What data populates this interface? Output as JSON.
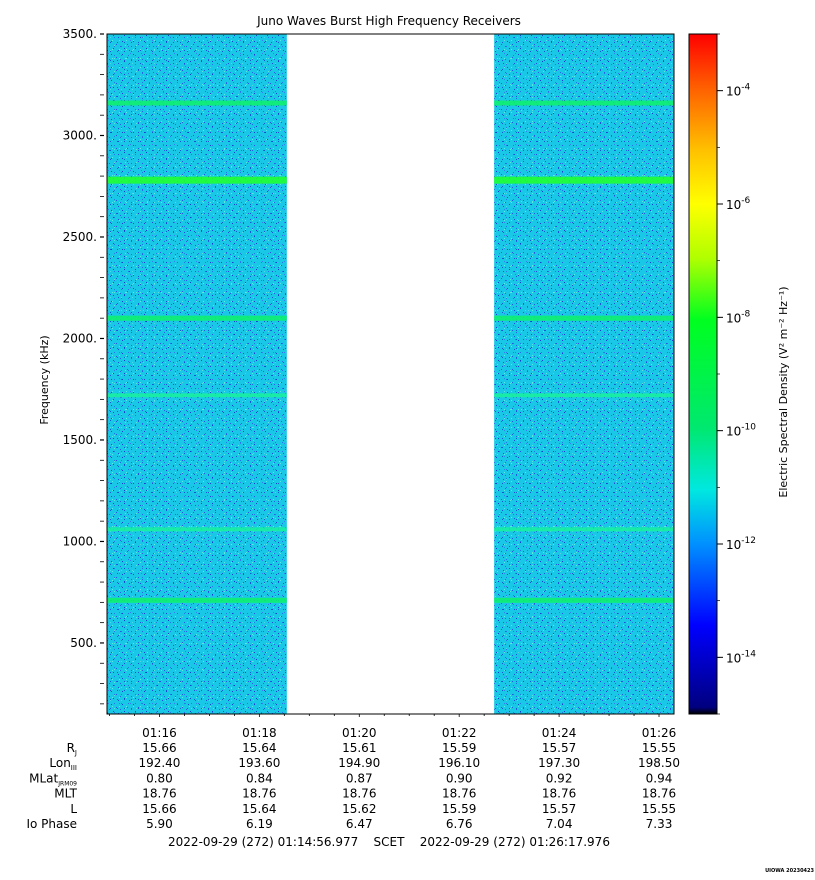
{
  "chart_data": {
    "type": "heatmap",
    "title": "Juno Waves Burst High Frequency Receivers",
    "ylabel": "Frequency (kHz)",
    "ylim": [
      150,
      3500
    ],
    "y_ticks": [
      {
        "value": 500,
        "label": "500."
      },
      {
        "value": 1000,
        "label": "1000."
      },
      {
        "value": 1500,
        "label": "1500."
      },
      {
        "value": 2000,
        "label": "2000."
      },
      {
        "value": 2500,
        "label": "2500."
      },
      {
        "value": 3000,
        "label": "3000."
      },
      {
        "value": 3500,
        "label": "3500."
      }
    ],
    "x_range_minutes": [
      14.95,
      26.3
    ],
    "x_ticks": [
      {
        "value": 16,
        "label": "01:16"
      },
      {
        "value": 18,
        "label": "01:18"
      },
      {
        "value": 20,
        "label": "01:20"
      },
      {
        "value": 22,
        "label": "01:22"
      },
      {
        "value": 24,
        "label": "01:24"
      },
      {
        "value": 26,
        "label": "01:26"
      }
    ],
    "data_gap_minutes": [
      18.55,
      22.7
    ],
    "background_level": 1e-12,
    "emission_bands": [
      {
        "frequency_khz": 3160,
        "level": 1e-10
      },
      {
        "frequency_khz": 2780,
        "level": 1e-09
      },
      {
        "frequency_khz": 2100,
        "level": 1e-10
      },
      {
        "frequency_khz": 1720,
        "level": 3e-11
      },
      {
        "frequency_khz": 1060,
        "level": 3e-11
      },
      {
        "frequency_khz": 710,
        "level": 6e-11
      }
    ],
    "colorbar": {
      "label": "Electric Spectral Density (V² m⁻² Hz⁻¹)",
      "scale": "log",
      "range_exp": [
        -15,
        -3
      ],
      "ticks": [
        {
          "exp": -14,
          "base": "10",
          "sup": "-14"
        },
        {
          "exp": -12,
          "base": "10",
          "sup": "-12"
        },
        {
          "exp": -10,
          "base": "10",
          "sup": "-10"
        },
        {
          "exp": -8,
          "base": "10",
          "sup": "-8"
        },
        {
          "exp": -6,
          "base": "10",
          "sup": "-6"
        },
        {
          "exp": -4,
          "base": "10",
          "sup": "-4"
        }
      ],
      "colors": [
        "#000080",
        "#0000ff",
        "#00a0ff",
        "#00e0e0",
        "#00ff40",
        "#a0ff00",
        "#ffff00",
        "#ff8000",
        "#ff0000"
      ]
    },
    "ephemeris": {
      "rows": [
        {
          "label": "R",
          "sub": "J",
          "values": [
            "15.66",
            "15.64",
            "15.61",
            "15.59",
            "15.57",
            "15.55"
          ]
        },
        {
          "label": "Lon",
          "sub": "III",
          "values": [
            "192.40",
            "193.60",
            "194.90",
            "196.10",
            "197.30",
            "198.50"
          ]
        },
        {
          "label": "MLat",
          "sub": "JRM09",
          "values": [
            "0.80",
            "0.84",
            "0.87",
            "0.90",
            "0.92",
            "0.94"
          ]
        },
        {
          "label": "MLT",
          "sub": "",
          "values": [
            "18.76",
            "18.76",
            "18.76",
            "18.76",
            "18.76",
            "18.76"
          ]
        },
        {
          "label": "L",
          "sub": "",
          "values": [
            "15.66",
            "15.64",
            "15.62",
            "15.59",
            "15.57",
            "15.55"
          ]
        },
        {
          "label": "Io Phase",
          "sub": "",
          "values": [
            "5.90",
            "6.19",
            "6.47",
            "6.76",
            "7.04",
            "7.33"
          ]
        }
      ]
    },
    "time_range_text": "2022-09-29 (272) 01:14:56.977    SCET    2022-09-29 (272) 01:26:17.976",
    "footer_stamp": "UIOWA 20230423"
  }
}
